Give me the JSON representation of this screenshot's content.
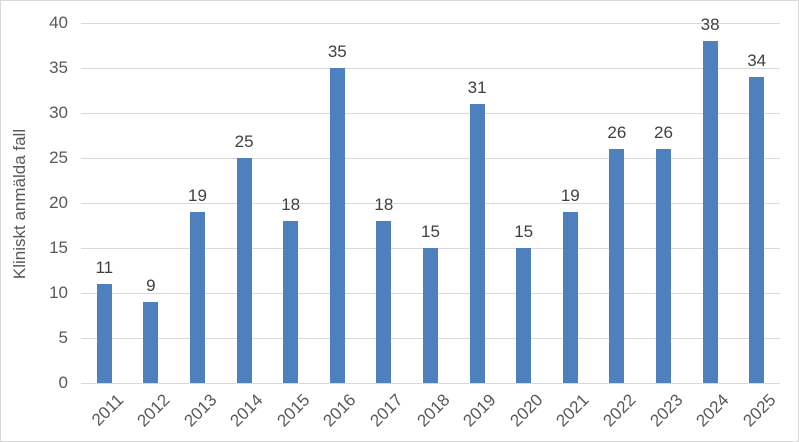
{
  "chart_data": {
    "type": "bar",
    "categories": [
      "2011",
      "2012",
      "2013",
      "2014",
      "2015",
      "2016",
      "2017",
      "2018",
      "2019",
      "2020",
      "2021",
      "2022",
      "2023",
      "2024",
      "2025"
    ],
    "values": [
      11,
      9,
      19,
      25,
      18,
      35,
      18,
      15,
      31,
      15,
      19,
      26,
      26,
      38,
      34
    ],
    "title": "",
    "xlabel": "",
    "ylabel": "Kliniskt anmälda fall",
    "ylim": [
      0,
      40
    ],
    "ytick_step": 5,
    "yticks": [
      0,
      5,
      10,
      15,
      20,
      25,
      30,
      35,
      40
    ],
    "grid": true,
    "legend": "none",
    "colors": {
      "bar_fill": "#4E80BD",
      "gridline": "#D9D9D9",
      "axis_text": "#595959",
      "data_label_text": "#404040",
      "chart_border": "#D9D9D9",
      "background": "#FFFFFF"
    }
  }
}
